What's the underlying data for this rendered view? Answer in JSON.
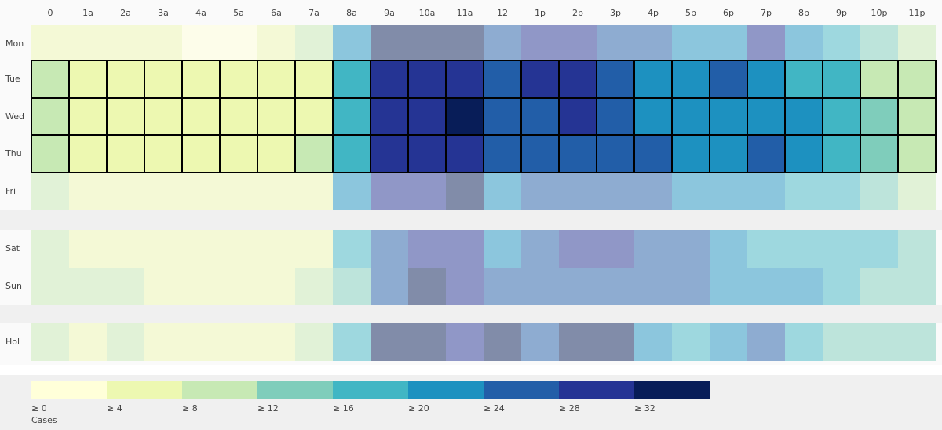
{
  "chart_data": {
    "type": "heatmap",
    "x": [
      "0",
      "1a",
      "2a",
      "3a",
      "4a",
      "5a",
      "6a",
      "7a",
      "8a",
      "9a",
      "10a",
      "11a",
      "12",
      "1p",
      "2p",
      "3p",
      "4p",
      "5p",
      "6p",
      "7p",
      "8p",
      "9p",
      "10p",
      "11p"
    ],
    "rows": [
      "Mon",
      "Tue",
      "Wed",
      "Thu",
      "Fri",
      "Sat",
      "Sun",
      "Hol"
    ],
    "highlight_rows": [
      1,
      2,
      3
    ],
    "values": [
      [
        6,
        6,
        6,
        6,
        2,
        2,
        6,
        10,
        22,
        34,
        34,
        34,
        26,
        30,
        30,
        26,
        26,
        22,
        22,
        30,
        22,
        18,
        14,
        10
      ],
      [
        10,
        6,
        6,
        6,
        6,
        6,
        6,
        6,
        18,
        30,
        30,
        30,
        26,
        30,
        30,
        26,
        22,
        22,
        26,
        22,
        18,
        18,
        10,
        10
      ],
      [
        10,
        6,
        6,
        6,
        6,
        6,
        6,
        6,
        18,
        30,
        30,
        34,
        26,
        26,
        30,
        26,
        22,
        22,
        22,
        22,
        22,
        18,
        14,
        10
      ],
      [
        10,
        6,
        6,
        6,
        6,
        6,
        6,
        10,
        18,
        30,
        30,
        30,
        26,
        26,
        26,
        26,
        26,
        22,
        22,
        26,
        22,
        18,
        14,
        10
      ],
      [
        10,
        6,
        6,
        6,
        6,
        6,
        6,
        6,
        22,
        30,
        30,
        34,
        22,
        26,
        26,
        26,
        26,
        22,
        22,
        22,
        18,
        18,
        14,
        10
      ],
      [
        10,
        6,
        6,
        6,
        6,
        6,
        6,
        6,
        18,
        26,
        30,
        30,
        22,
        26,
        30,
        30,
        26,
        26,
        22,
        18,
        18,
        18,
        18,
        14
      ],
      [
        10,
        10,
        10,
        6,
        6,
        6,
        6,
        10,
        14,
        26,
        34,
        30,
        26,
        26,
        26,
        26,
        26,
        26,
        22,
        22,
        22,
        18,
        14,
        14
      ],
      [
        10,
        6,
        10,
        6,
        6,
        6,
        6,
        10,
        18,
        34,
        34,
        30,
        34,
        26,
        34,
        34,
        22,
        18,
        22,
        26,
        18,
        14,
        14,
        14
      ]
    ],
    "legend_title": "Cases",
    "color_scale": {
      "thresholds": [
        {
          "value": 0,
          "label": "≥ 0"
        },
        {
          "value": 4,
          "label": "≥ 4"
        },
        {
          "value": 8,
          "label": "≥ 8"
        },
        {
          "value": 12,
          "label": "≥ 12"
        },
        {
          "value": 16,
          "label": "≥ 16"
        },
        {
          "value": 20,
          "label": "≥ 20"
        },
        {
          "value": 24,
          "label": "≥ 24"
        },
        {
          "value": 28,
          "label": "≥ 28"
        },
        {
          "value": 32,
          "label": "≥ 32"
        }
      ],
      "colors": [
        "#ffffd9",
        "#edf8b1",
        "#c7e9b4",
        "#7fcdbb",
        "#41b6c4",
        "#1d91c0",
        "#225ea8",
        "#253494",
        "#081d58"
      ]
    }
  }
}
